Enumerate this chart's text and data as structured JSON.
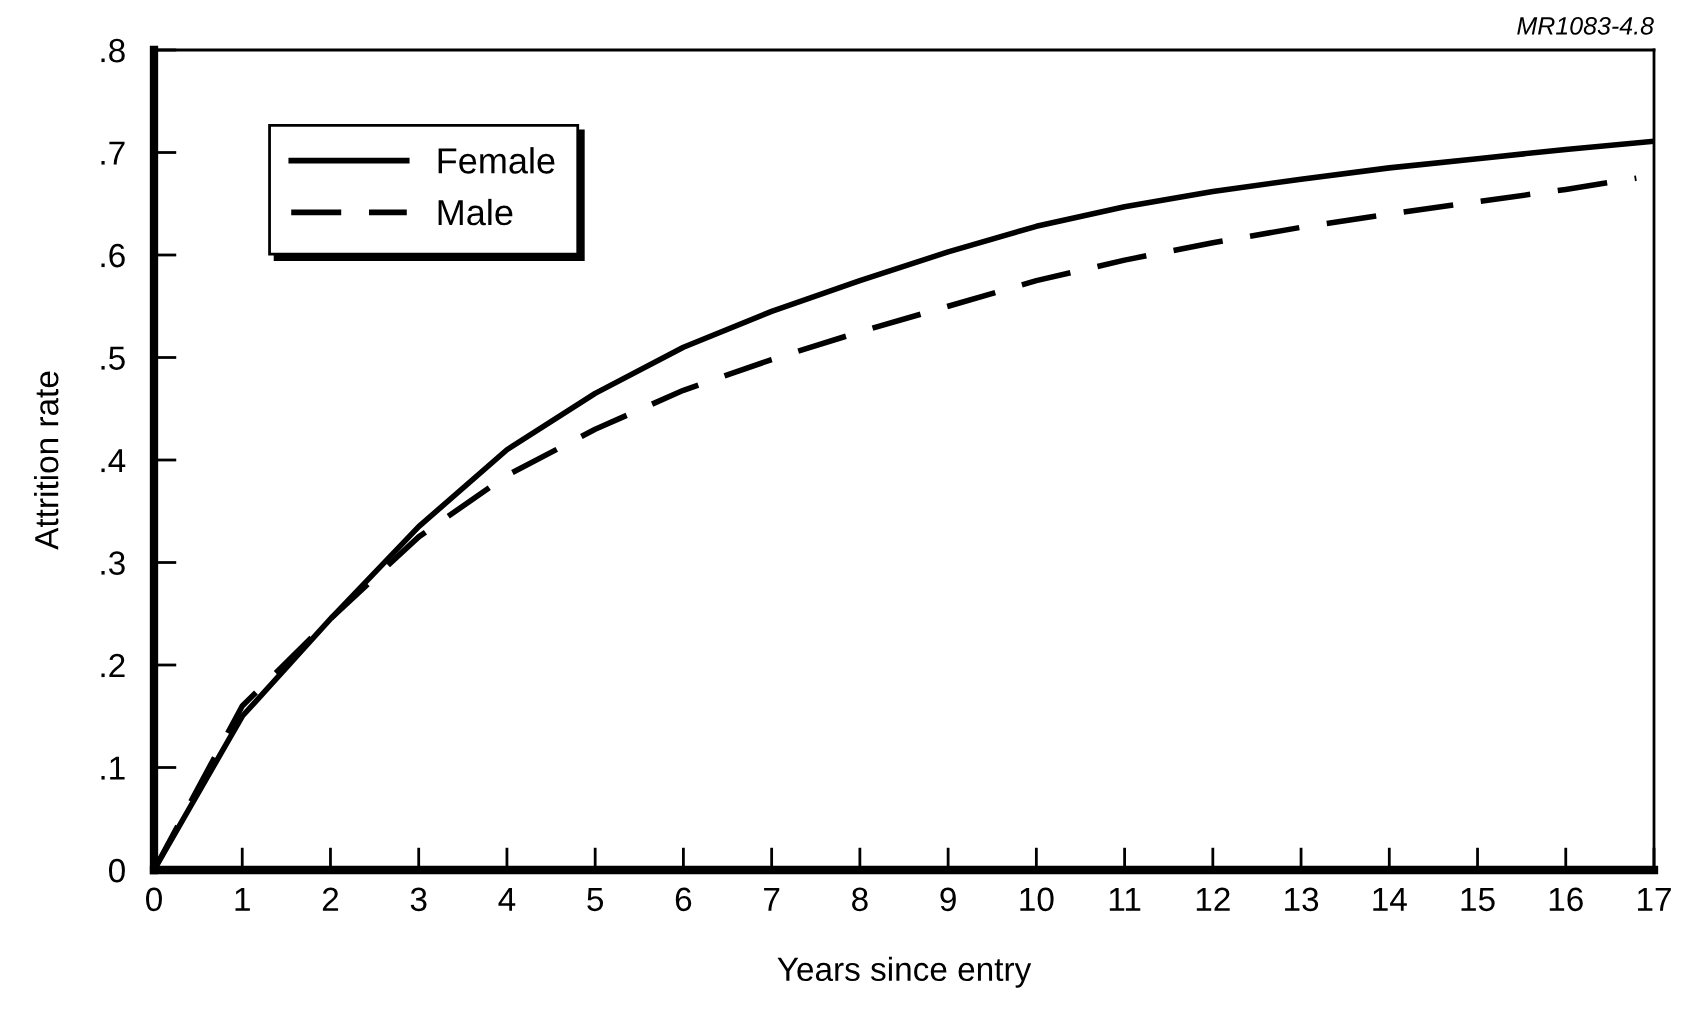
{
  "chart_data": {
    "type": "line",
    "xlabel": "Years since entry",
    "ylabel": "Attrition rate",
    "annotations": [
      "MR1083-4.8"
    ],
    "xlim": [
      0,
      17
    ],
    "xticks": [
      0,
      1,
      2,
      3,
      4,
      5,
      6,
      7,
      8,
      9,
      10,
      11,
      12,
      13,
      14,
      15,
      16,
      17
    ],
    "ylim": [
      0,
      0.8
    ],
    "yticks": [
      0,
      {
        "value": 0.1,
        "label": ".1"
      },
      {
        "value": 0.2,
        "label": ".2"
      },
      {
        "value": 0.3,
        "label": ".3"
      },
      {
        "value": 0.4,
        "label": ".4"
      },
      {
        "value": 0.5,
        "label": ".5"
      },
      {
        "value": 0.6,
        "label": ".6"
      },
      {
        "value": 0.7,
        "label": ".7"
      },
      {
        "value": 0.8,
        "label": ".8"
      }
    ],
    "grid": false,
    "legend": "top left",
    "marker": "none",
    "series": [
      {
        "name": "Female",
        "color": "#000000",
        "line_style": "solid",
        "x": [
          0,
          1,
          2,
          3,
          4,
          5,
          6,
          7,
          8,
          9,
          10,
          11,
          12,
          13,
          14,
          15,
          16,
          17
        ],
        "values": [
          0,
          0.15,
          0.245,
          0.335,
          0.41,
          0.465,
          0.51,
          0.545,
          0.575,
          0.603,
          0.628,
          0.647,
          0.662,
          0.674,
          0.685,
          0.694,
          0.703,
          0.711
        ]
      },
      {
        "name": "Male",
        "color": "#000000",
        "line_style": "dashed",
        "x": [
          0,
          1,
          2,
          3,
          4,
          5,
          6,
          7,
          8,
          9,
          10,
          11,
          12,
          13,
          14,
          15,
          16,
          16.8
        ],
        "values": [
          0,
          0.16,
          0.245,
          0.325,
          0.385,
          0.43,
          0.468,
          0.498,
          0.525,
          0.55,
          0.575,
          0.595,
          0.612,
          0.627,
          0.64,
          0.652,
          0.664,
          0.675
        ]
      }
    ]
  }
}
